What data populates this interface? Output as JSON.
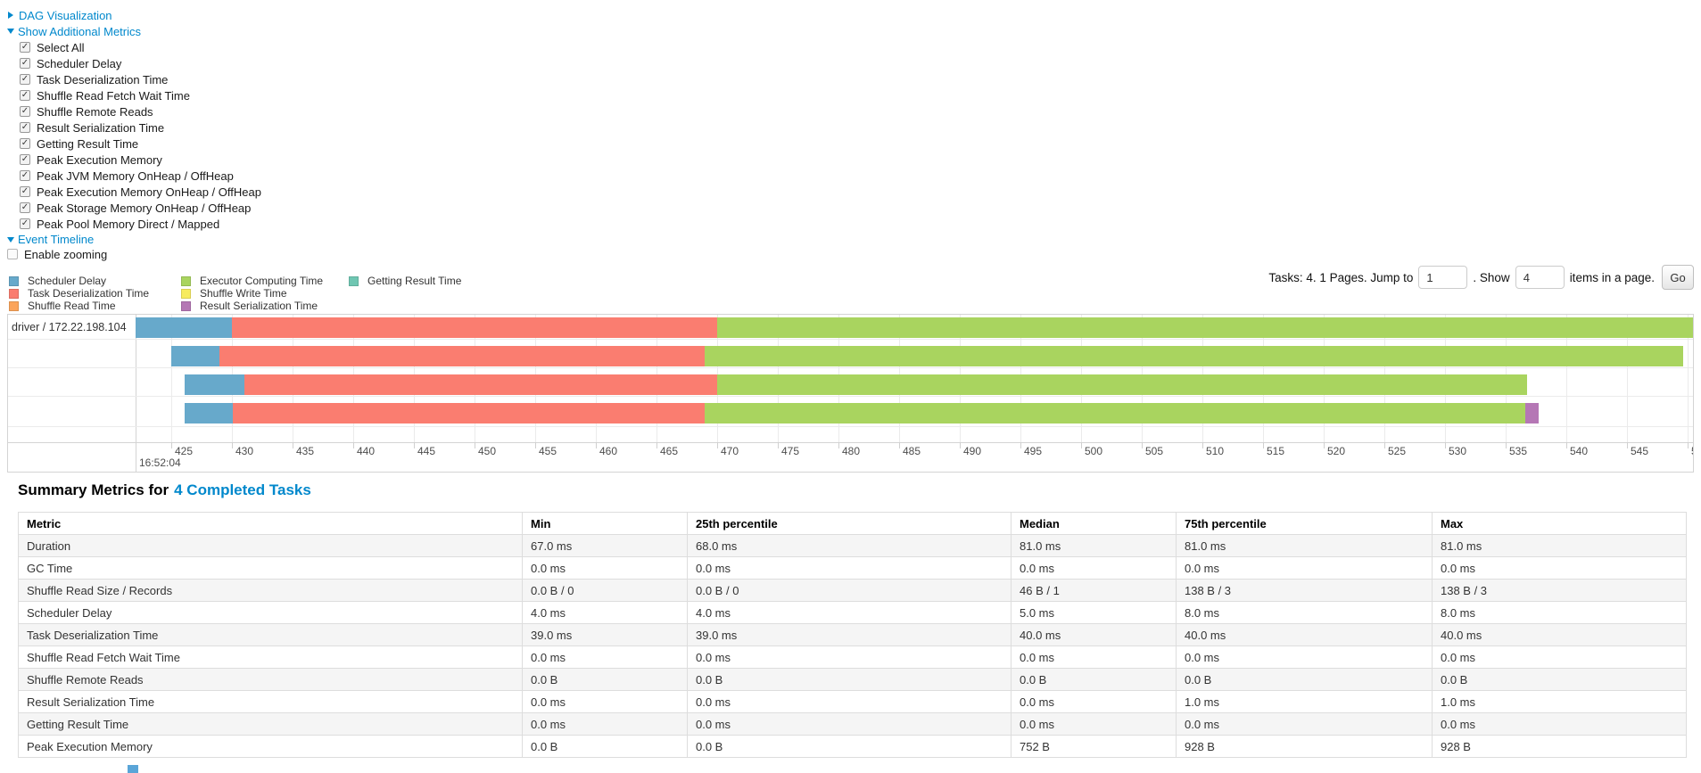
{
  "colors": {
    "scheduler_delay": "#67A9CB",
    "task_deserialization": "#FA7D70",
    "shuffle_read": "#FBA45B",
    "executor_computing": "#A9D45F",
    "shuffle_write": "#F7EB5F",
    "result_serialization": "#B577B5",
    "getting_result": "#6FC6B2",
    "link": "#0088cc"
  },
  "sections": {
    "dag": "DAG Visualization",
    "metrics": "Show Additional Metrics",
    "timeline": "Event Timeline"
  },
  "metrics_panel": {
    "items": [
      {
        "label": "Select All",
        "checked": true
      },
      {
        "label": "Scheduler Delay",
        "checked": true
      },
      {
        "label": "Task Deserialization Time",
        "checked": true
      },
      {
        "label": "Shuffle Read Fetch Wait Time",
        "checked": true
      },
      {
        "label": "Shuffle Remote Reads",
        "checked": true
      },
      {
        "label": "Result Serialization Time",
        "checked": true
      },
      {
        "label": "Getting Result Time",
        "checked": true
      },
      {
        "label": "Peak Execution Memory",
        "checked": true
      },
      {
        "label": "Peak JVM Memory OnHeap / OffHeap",
        "checked": true
      },
      {
        "label": "Peak Execution Memory OnHeap / OffHeap",
        "checked": true
      },
      {
        "label": "Peak Storage Memory OnHeap / OffHeap",
        "checked": true
      },
      {
        "label": "Peak Pool Memory Direct / Mapped",
        "checked": true
      }
    ],
    "enable_zooming": {
      "label": "Enable zooming",
      "checked": false
    }
  },
  "legend": {
    "columns": [
      [
        {
          "key": "scheduler_delay",
          "label": "Scheduler Delay"
        },
        {
          "key": "task_deserialization",
          "label": "Task Deserialization Time"
        },
        {
          "key": "shuffle_read",
          "label": "Shuffle Read Time"
        }
      ],
      [
        {
          "key": "executor_computing",
          "label": "Executor Computing Time"
        },
        {
          "key": "shuffle_write",
          "label": "Shuffle Write Time"
        },
        {
          "key": "result_serialization",
          "label": "Result Serialization Time"
        }
      ],
      [
        {
          "key": "getting_result",
          "label": "Getting Result Time"
        }
      ]
    ]
  },
  "pagination": {
    "tasks_info": "Tasks: 4. 1 Pages. Jump to",
    "jump_value": "1",
    "show_label": ". Show",
    "page_size_value": "4",
    "items_label": "items in a page.",
    "go_label": "Go"
  },
  "timeline": {
    "group_label": "driver / 172.22.198.104",
    "base_time_label": "16:52:04",
    "axis_ms": {
      "start": 425,
      "end": 550,
      "step": 5
    },
    "tasks": [
      {
        "segments": [
          [
            "scheduler_delay",
            422.0,
            430.0
          ],
          [
            "task_deserialization",
            430.0,
            470.0
          ],
          [
            "executor_computing",
            470.0,
            551.0
          ]
        ]
      },
      {
        "segments": [
          [
            "scheduler_delay",
            425.0,
            429.0
          ],
          [
            "task_deserialization",
            429.0,
            469.0
          ],
          [
            "executor_computing",
            469.0,
            549.6
          ]
        ]
      },
      {
        "segments": [
          [
            "scheduler_delay",
            426.1,
            431.0
          ],
          [
            "task_deserialization",
            431.0,
            470.0
          ],
          [
            "executor_computing",
            470.0,
            536.8
          ]
        ]
      },
      {
        "segments": [
          [
            "scheduler_delay",
            426.1,
            430.1
          ],
          [
            "task_deserialization",
            430.1,
            469.0
          ],
          [
            "executor_computing",
            469.0,
            536.6
          ],
          [
            "result_serialization",
            536.6,
            537.7
          ]
        ]
      }
    ]
  },
  "summary": {
    "title_prefix": "Summary Metrics for",
    "title_link": "4 Completed Tasks",
    "columns": [
      "Metric",
      "Min",
      "25th percentile",
      "Median",
      "75th percentile",
      "Max"
    ],
    "rows": [
      {
        "metric": "Duration",
        "values": [
          "67.0 ms",
          "68.0 ms",
          "81.0 ms",
          "81.0 ms",
          "81.0 ms"
        ]
      },
      {
        "metric": "GC Time",
        "values": [
          "0.0 ms",
          "0.0 ms",
          "0.0 ms",
          "0.0 ms",
          "0.0 ms"
        ]
      },
      {
        "metric": "Shuffle Read Size / Records",
        "values": [
          "0.0 B / 0",
          "0.0 B / 0",
          "46 B / 1",
          "138 B / 3",
          "138 B / 3"
        ]
      },
      {
        "metric": "Scheduler Delay",
        "values": [
          "4.0 ms",
          "4.0 ms",
          "5.0 ms",
          "8.0 ms",
          "8.0 ms"
        ]
      },
      {
        "metric": "Task Deserialization Time",
        "values": [
          "39.0 ms",
          "39.0 ms",
          "40.0 ms",
          "40.0 ms",
          "40.0 ms"
        ]
      },
      {
        "metric": "Shuffle Read Fetch Wait Time",
        "values": [
          "0.0 ms",
          "0.0 ms",
          "0.0 ms",
          "0.0 ms",
          "0.0 ms"
        ]
      },
      {
        "metric": "Shuffle Remote Reads",
        "values": [
          "0.0 B",
          "0.0 B",
          "0.0 B",
          "0.0 B",
          "0.0 B"
        ]
      },
      {
        "metric": "Result Serialization Time",
        "values": [
          "0.0 ms",
          "0.0 ms",
          "0.0 ms",
          "1.0 ms",
          "1.0 ms"
        ]
      },
      {
        "metric": "Getting Result Time",
        "values": [
          "0.0 ms",
          "0.0 ms",
          "0.0 ms",
          "0.0 ms",
          "0.0 ms"
        ]
      },
      {
        "metric": "Peak Execution Memory",
        "values": [
          "0.0 B",
          "0.0 B",
          "752 B",
          "928 B",
          "928 B"
        ]
      }
    ]
  }
}
